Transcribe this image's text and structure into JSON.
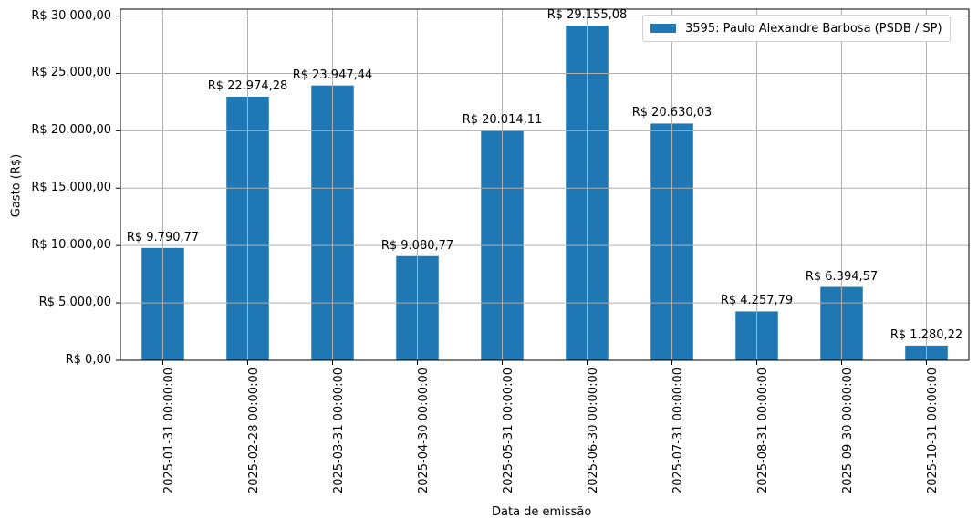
{
  "chart_data": {
    "type": "bar",
    "title": "",
    "xlabel": "Data de emissão",
    "ylabel": "Gasto (R$)",
    "ylim": [
      0,
      30600
    ],
    "grid": true,
    "legend_position": "upper right",
    "bar_color": "#1f77b4",
    "categories": [
      "2025-01-31 00:00:00",
      "2025-02-28 00:00:00",
      "2025-03-31 00:00:00",
      "2025-04-30 00:00:00",
      "2025-05-31 00:00:00",
      "2025-06-30 00:00:00",
      "2025-07-31 00:00:00",
      "2025-08-31 00:00:00",
      "2025-09-30 00:00:00",
      "2025-10-31 00:00:00"
    ],
    "series": [
      {
        "name": "3595: Paulo Alexandre Barbosa (PSDB / SP)",
        "values": [
          9790.77,
          22974.28,
          23947.44,
          9080.77,
          20014.11,
          29155.08,
          20630.03,
          4257.79,
          6394.57,
          1280.22
        ],
        "labels": [
          "R$ 9.790,77",
          "R$ 22.974,28",
          "R$ 23.947,44",
          "R$ 9.080,77",
          "R$ 20.014,11",
          "R$ 29.155,08",
          "R$ 20.630,03",
          "R$ 4.257,79",
          "R$ 6.394,57",
          "R$ 1.280,22"
        ]
      }
    ],
    "yticks": [
      0,
      5000,
      10000,
      15000,
      20000,
      25000,
      30000
    ],
    "ytick_labels": [
      "R$ 0,00",
      "R$ 5.000,00",
      "R$ 10.000,00",
      "R$ 15.000,00",
      "R$ 20.000,00",
      "R$ 25.000,00",
      "R$ 30.000,00"
    ]
  }
}
